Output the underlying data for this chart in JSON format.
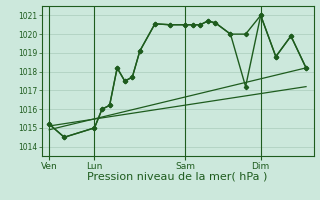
{
  "bg_color": "#cce8dc",
  "grid_color": "#aaccbb",
  "line_color": "#1e5c1e",
  "xlabel": "Pression niveau de la mer( hPa )",
  "xlabel_fontsize": 8,
  "ylim": [
    1013.5,
    1021.5
  ],
  "yticks": [
    1014,
    1015,
    1016,
    1017,
    1018,
    1019,
    1020,
    1021
  ],
  "day_labels": [
    "Ven",
    "Lun",
    "Sam",
    "Dim"
  ],
  "day_positions": [
    0,
    12,
    36,
    56
  ],
  "xlim": [
    -2,
    70
  ],
  "line1_x": [
    0,
    4,
    12,
    14,
    16,
    18,
    20,
    22,
    24,
    28,
    32,
    36,
    38,
    40,
    42,
    44,
    48,
    52,
    56,
    60,
    64,
    68
  ],
  "line1_y": [
    1015.2,
    1014.5,
    1015.0,
    1016.0,
    1016.2,
    1018.2,
    1017.5,
    1017.7,
    1019.1,
    1020.55,
    1020.5,
    1020.5,
    1020.5,
    1020.5,
    1020.7,
    1020.6,
    1020.0,
    1020.0,
    1021.0,
    1018.8,
    1019.9,
    1018.2
  ],
  "line2_x": [
    0,
    4,
    12,
    14,
    16,
    18,
    20,
    22,
    24,
    28,
    32,
    36,
    38,
    40,
    42,
    44,
    48,
    52,
    56,
    60,
    64,
    68
  ],
  "line2_y": [
    1015.2,
    1014.5,
    1015.0,
    1016.0,
    1016.2,
    1018.2,
    1017.5,
    1017.7,
    1019.1,
    1020.55,
    1020.5,
    1020.5,
    1020.5,
    1020.5,
    1020.7,
    1020.6,
    1020.0,
    1017.2,
    1021.0,
    1018.8,
    1019.9,
    1018.2
  ],
  "trend1_x": [
    0,
    68
  ],
  "trend1_y": [
    1015.1,
    1017.2
  ],
  "trend2_x": [
    0,
    68
  ],
  "trend2_y": [
    1014.9,
    1018.2
  ]
}
